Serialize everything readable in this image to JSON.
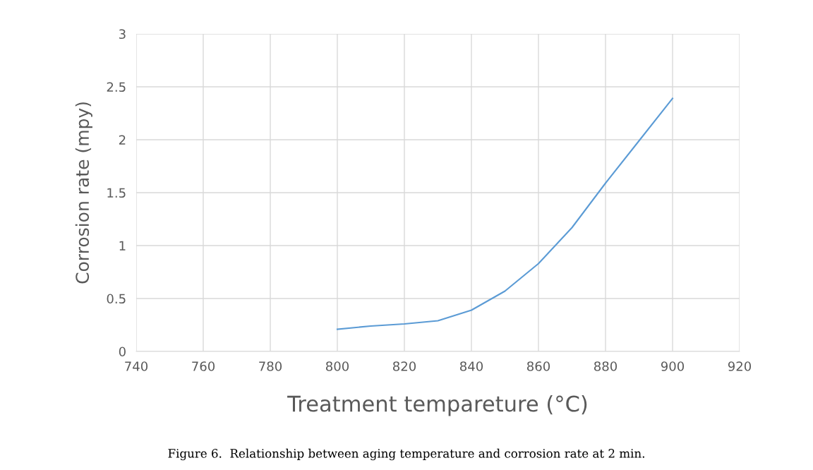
{
  "chart_data": {
    "type": "line",
    "xlabel": "Treatment tempareture (°C)",
    "ylabel": "Corrosion rate (mpy)",
    "x": [
      800,
      810,
      820,
      830,
      840,
      850,
      860,
      870,
      880,
      890,
      900
    ],
    "series": [
      {
        "color": "#5b9bd5",
        "values": [
          0.21,
          0.24,
          0.26,
          0.29,
          0.39,
          0.57,
          0.83,
          1.17,
          1.59,
          1.99,
          2.39
        ]
      }
    ],
    "xlim": [
      740,
      920
    ],
    "xticks": [
      740,
      760,
      780,
      800,
      820,
      840,
      860,
      880,
      900,
      920
    ],
    "ylim": [
      0,
      3
    ],
    "yticks": [
      0,
      0.5,
      1,
      1.5,
      2,
      2.5,
      3
    ],
    "grid": true,
    "marker": "none",
    "line_style": "solid",
    "annotations": [
      "Figure 6.  Relationship between aging temperature and corrosion rate at 2 min."
    ]
  }
}
